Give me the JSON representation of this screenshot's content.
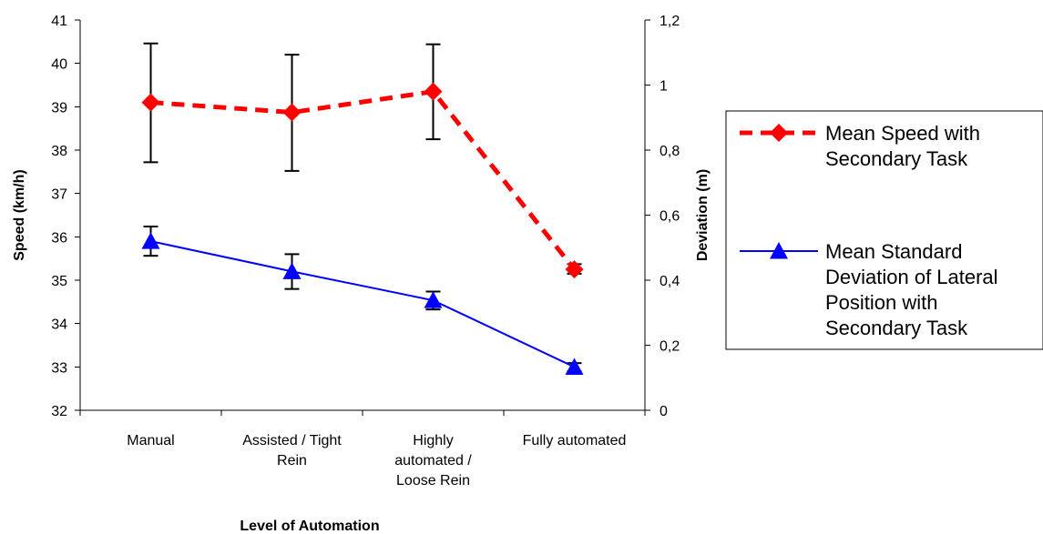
{
  "chart_data": {
    "type": "line",
    "categories": [
      [
        "Manual"
      ],
      [
        "Assisted / Tight",
        "Rein"
      ],
      [
        "Highly",
        "automated /",
        "Loose Rein"
      ],
      [
        "Fully automated"
      ]
    ],
    "xlabel": "Level of Automation",
    "ylabel": "Speed (km/h)",
    "y2label": "Deviation (m)",
    "ylim": [
      32,
      41
    ],
    "yticks": [
      "32",
      "33",
      "34",
      "35",
      "36",
      "37",
      "38",
      "39",
      "40",
      "41"
    ],
    "y2lim": [
      0,
      1.2
    ],
    "y2ticks": [
      "0",
      "0,2",
      "0,4",
      "0,6",
      "0,8",
      "1",
      "1,2"
    ],
    "grid": false,
    "legend_position": "right",
    "series": [
      {
        "name": [
          "Mean Speed with",
          "Secondary Task"
        ],
        "axis": "left",
        "values": [
          39.1,
          38.87,
          39.35,
          35.25
        ],
        "error_low": [
          37.72,
          37.52,
          38.25,
          35.15
        ],
        "error_high": [
          40.46,
          40.2,
          40.44,
          35.37
        ],
        "color": "#ff0000",
        "line_style": "dashed",
        "marker": "diamond"
      },
      {
        "name": [
          "Mean Standard",
          "Deviation of Lateral",
          "Position with",
          "Secondary Task"
        ],
        "axis": "right",
        "values": [
          0.52,
          0.427,
          0.338,
          0.133
        ],
        "error_low": [
          0.475,
          0.373,
          0.31,
          0.12
        ],
        "error_high": [
          0.565,
          0.48,
          0.365,
          0.145
        ],
        "color": "#0000ff",
        "line_style": "solid",
        "marker": "triangle"
      }
    ]
  }
}
